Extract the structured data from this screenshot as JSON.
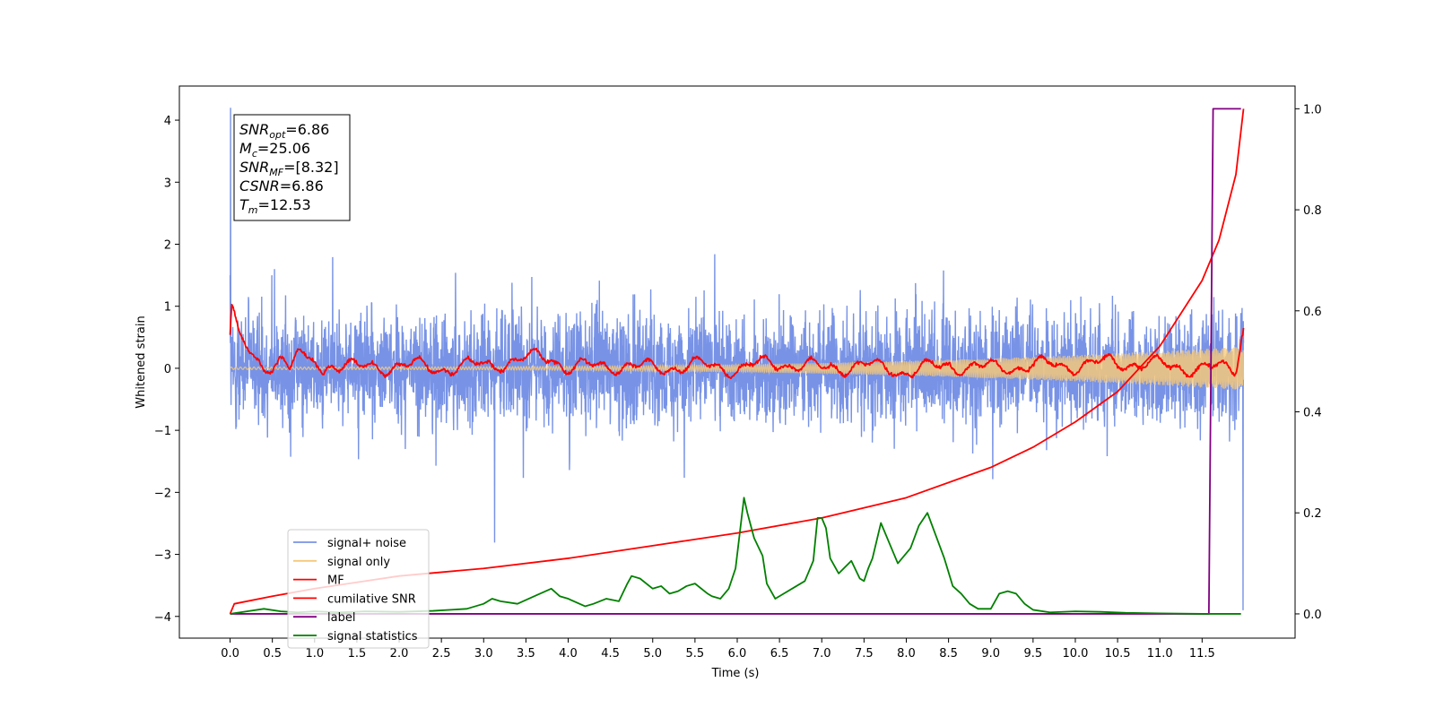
{
  "chart_data": {
    "type": "line",
    "xlabel": "Time (s)",
    "ylabel": "Whitened strain",
    "xlim": [
      -0.6,
      12.6
    ],
    "ylim": [
      -4.35,
      4.55
    ],
    "y2lim": [
      -0.048,
      1.045
    ],
    "x_ticks": [
      0.0,
      0.5,
      1.0,
      1.5,
      2.0,
      2.5,
      3.0,
      3.5,
      4.0,
      4.5,
      5.0,
      5.5,
      6.0,
      6.5,
      7.0,
      7.5,
      8.0,
      8.5,
      9.0,
      9.5,
      10.0,
      10.5,
      11.0,
      11.5
    ],
    "x_tick_labels": [
      "0.0",
      "0.5",
      "1.0",
      "1.5",
      "2.0",
      "2.5",
      "3.0",
      "3.5",
      "4.0",
      "4.5",
      "5.0",
      "5.5",
      "6.0",
      "6.5",
      "7.0",
      "7.5",
      "8.0",
      "8.5",
      "9.0",
      "9.5",
      "10.0",
      "10.5",
      "11.0",
      "11.5"
    ],
    "y_ticks": [
      4,
      3,
      2,
      1,
      0,
      -1,
      -2,
      -3,
      -4
    ],
    "y_tick_labels": [
      "4",
      "3",
      "2",
      "1",
      "0",
      "−1",
      "−2",
      "−3",
      "−4"
    ],
    "y2_ticks": [
      1.0,
      0.8,
      0.6,
      0.4,
      0.2,
      0.0
    ],
    "y2_tick_labels": [
      "1.0",
      "0.8",
      "0.6",
      "0.4",
      "0.2",
      "0.0"
    ],
    "grid": false,
    "legend_position": "lower-left",
    "annotation": {
      "lines": [
        {
          "main": "SNR",
          "sub": "opt",
          "rest": "=6.86"
        },
        {
          "main": "M",
          "sub": "c",
          "rest": "=25.06"
        },
        {
          "main": "SNR",
          "sub": "MF",
          "rest": "=[8.32]"
        },
        {
          "main": "CSNR",
          "sub": "",
          "rest": "=6.86"
        },
        {
          "main": "T",
          "sub": "m",
          "rest": "=12.53"
        }
      ]
    },
    "series": [
      {
        "name": "signal+ noise",
        "color": "#7893e6",
        "axis": "left",
        "description_range": [
          -4.0,
          4.2
        ],
        "x_range": [
          0.0,
          11.99
        ]
      },
      {
        "name": "signal only",
        "color": "#f5c87a",
        "axis": "left",
        "amplitude_start": 0.02,
        "amplitude_end": 0.35,
        "x_range": [
          0.0,
          11.99
        ]
      },
      {
        "name": "MF",
        "color": "#ff0000",
        "axis": "left",
        "points": [
          [
            0.0,
            0.55
          ],
          [
            0.02,
            1.0
          ],
          [
            0.1,
            0.5
          ],
          [
            0.2,
            0.3
          ],
          [
            0.3,
            0.1
          ],
          [
            0.4,
            0.0
          ],
          [
            0.5,
            0.1
          ],
          [
            0.6,
            0.2
          ],
          [
            0.7,
            0.0
          ],
          [
            0.8,
            0.25
          ],
          [
            0.9,
            0.05
          ],
          [
            1.0,
            0.15
          ],
          [
            1.1,
            -0.05
          ],
          [
            1.2,
            0.1
          ],
          [
            1.5,
            0.0
          ],
          [
            2.0,
            0.05
          ],
          [
            2.5,
            0.0
          ],
          [
            3.0,
            0.05
          ],
          [
            3.5,
            0.15
          ],
          [
            3.8,
            0.2
          ],
          [
            4.0,
            0.0
          ],
          [
            4.5,
            0.05
          ],
          [
            5.0,
            0.0
          ],
          [
            5.5,
            0.05
          ],
          [
            6.0,
            0.0
          ],
          [
            6.5,
            0.1
          ],
          [
            7.0,
            0.0
          ],
          [
            7.5,
            0.05
          ],
          [
            8.0,
            -0.05
          ],
          [
            8.5,
            0.05
          ],
          [
            9.0,
            0.0
          ],
          [
            9.5,
            0.05
          ],
          [
            10.0,
            0.05
          ],
          [
            10.5,
            0.1
          ],
          [
            11.0,
            0.05
          ],
          [
            11.5,
            0.0
          ],
          [
            11.9,
            0.0
          ],
          [
            11.97,
            0.6
          ],
          [
            11.99,
            0.65
          ]
        ]
      },
      {
        "name": "cumilative SNR",
        "color": "#ff0000",
        "axis": "right",
        "points": [
          [
            0.0,
            0.0
          ],
          [
            0.05,
            0.02
          ],
          [
            0.5,
            0.035
          ],
          [
            1.0,
            0.05
          ],
          [
            2.0,
            0.075
          ],
          [
            3.0,
            0.09
          ],
          [
            4.0,
            0.11
          ],
          [
            5.0,
            0.135
          ],
          [
            6.0,
            0.16
          ],
          [
            7.0,
            0.19
          ],
          [
            8.0,
            0.23
          ],
          [
            9.0,
            0.29
          ],
          [
            9.5,
            0.33
          ],
          [
            10.0,
            0.38
          ],
          [
            10.5,
            0.44
          ],
          [
            11.0,
            0.53
          ],
          [
            11.5,
            0.66
          ],
          [
            11.7,
            0.74
          ],
          [
            11.9,
            0.87
          ],
          [
            11.99,
            1.0
          ]
        ]
      },
      {
        "name": "label",
        "color": "#800080",
        "axis": "right",
        "points": [
          [
            0.0,
            0.0
          ],
          [
            11.58,
            0.0
          ],
          [
            11.63,
            1.0
          ],
          [
            11.96,
            1.0
          ]
        ]
      },
      {
        "name": "signal statistics",
        "color": "#008000",
        "axis": "right",
        "points": [
          [
            0.0,
            0.0
          ],
          [
            0.2,
            0.005
          ],
          [
            0.4,
            0.01
          ],
          [
            0.6,
            0.005
          ],
          [
            0.8,
            0.003
          ],
          [
            1.0,
            0.005
          ],
          [
            1.3,
            0.003
          ],
          [
            1.6,
            0.005
          ],
          [
            2.0,
            0.004
          ],
          [
            2.4,
            0.006
          ],
          [
            2.8,
            0.01
          ],
          [
            3.0,
            0.02
          ],
          [
            3.1,
            0.03
          ],
          [
            3.2,
            0.025
          ],
          [
            3.4,
            0.02
          ],
          [
            3.6,
            0.035
          ],
          [
            3.8,
            0.05
          ],
          [
            3.9,
            0.035
          ],
          [
            4.0,
            0.03
          ],
          [
            4.2,
            0.015
          ],
          [
            4.3,
            0.02
          ],
          [
            4.45,
            0.03
          ],
          [
            4.6,
            0.025
          ],
          [
            4.7,
            0.06
          ],
          [
            4.75,
            0.075
          ],
          [
            4.85,
            0.07
          ],
          [
            5.0,
            0.05
          ],
          [
            5.1,
            0.055
          ],
          [
            5.2,
            0.04
          ],
          [
            5.3,
            0.045
          ],
          [
            5.4,
            0.055
          ],
          [
            5.5,
            0.06
          ],
          [
            5.65,
            0.04
          ],
          [
            5.7,
            0.035
          ],
          [
            5.8,
            0.03
          ],
          [
            5.9,
            0.05
          ],
          [
            5.98,
            0.09
          ],
          [
            6.08,
            0.23
          ],
          [
            6.12,
            0.2
          ],
          [
            6.2,
            0.15
          ],
          [
            6.3,
            0.115
          ],
          [
            6.35,
            0.06
          ],
          [
            6.45,
            0.03
          ],
          [
            6.55,
            0.04
          ],
          [
            6.7,
            0.055
          ],
          [
            6.8,
            0.065
          ],
          [
            6.9,
            0.105
          ],
          [
            6.95,
            0.19
          ],
          [
            7.0,
            0.19
          ],
          [
            7.05,
            0.17
          ],
          [
            7.1,
            0.11
          ],
          [
            7.2,
            0.08
          ],
          [
            7.35,
            0.105
          ],
          [
            7.45,
            0.07
          ],
          [
            7.5,
            0.065
          ],
          [
            7.55,
            0.09
          ],
          [
            7.6,
            0.11
          ],
          [
            7.7,
            0.18
          ],
          [
            7.8,
            0.14
          ],
          [
            7.85,
            0.12
          ],
          [
            7.9,
            0.1
          ],
          [
            8.05,
            0.13
          ],
          [
            8.15,
            0.175
          ],
          [
            8.25,
            0.2
          ],
          [
            8.35,
            0.155
          ],
          [
            8.45,
            0.11
          ],
          [
            8.55,
            0.055
          ],
          [
            8.65,
            0.04
          ],
          [
            8.75,
            0.02
          ],
          [
            8.85,
            0.01
          ],
          [
            9.0,
            0.01
          ],
          [
            9.1,
            0.04
          ],
          [
            9.2,
            0.045
          ],
          [
            9.3,
            0.04
          ],
          [
            9.4,
            0.02
          ],
          [
            9.5,
            0.008
          ],
          [
            9.7,
            0.003
          ],
          [
            10.0,
            0.005
          ],
          [
            10.3,
            0.004
          ],
          [
            10.6,
            0.002
          ],
          [
            11.0,
            0.001
          ],
          [
            11.5,
            0.0
          ],
          [
            11.96,
            0.0
          ]
        ]
      }
    ]
  }
}
